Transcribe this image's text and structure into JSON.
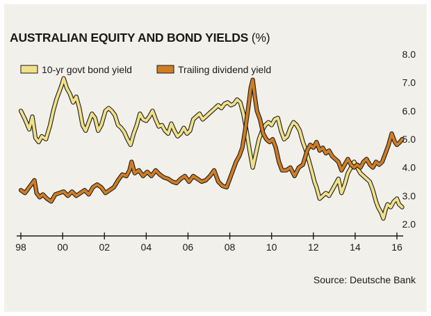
{
  "chart_data": {
    "type": "line",
    "title": "AUSTRALIAN EQUITY AND BOND YIELDS",
    "title_unit": "(%)",
    "source": "Source: Deutsche Bank",
    "xlabel": "",
    "ylabel": "",
    "xlim": [
      1997.8,
      2016.3
    ],
    "ylim": [
      2.0,
      8.0
    ],
    "x_ticks": [
      1998,
      2000,
      2002,
      2004,
      2006,
      2008,
      2010,
      2012,
      2014,
      2016
    ],
    "x_tick_labels": [
      "98",
      "00",
      "02",
      "04",
      "06",
      "08",
      "10",
      "12",
      "14",
      "16"
    ],
    "y_ticks": [
      2.0,
      3.0,
      4.0,
      5.0,
      6.0,
      7.0,
      8.0
    ],
    "y_tick_labels": [
      "2.0",
      "3.0",
      "4.0",
      "5.0",
      "6.0",
      "7.0",
      "8.0"
    ],
    "legend_position": "top-left",
    "series": [
      {
        "name": "10-yr govt bond yield",
        "color": "#f0e08a",
        "outline": "#1a1a1a",
        "points": [
          [
            1998.0,
            6.0
          ],
          [
            1998.2,
            5.7
          ],
          [
            1998.4,
            5.35
          ],
          [
            1998.55,
            5.8
          ],
          [
            1998.7,
            5.05
          ],
          [
            1998.85,
            4.9
          ],
          [
            1999.0,
            5.1
          ],
          [
            1999.2,
            5.0
          ],
          [
            1999.4,
            5.5
          ],
          [
            1999.55,
            6.0
          ],
          [
            1999.7,
            6.4
          ],
          [
            1999.8,
            6.6
          ],
          [
            1999.95,
            6.9
          ],
          [
            2000.05,
            7.15
          ],
          [
            2000.2,
            6.8
          ],
          [
            2000.35,
            6.6
          ],
          [
            2000.5,
            6.3
          ],
          [
            2000.65,
            6.5
          ],
          [
            2000.8,
            6.1
          ],
          [
            2000.95,
            5.5
          ],
          [
            2001.1,
            5.3
          ],
          [
            2001.25,
            5.6
          ],
          [
            2001.4,
            5.9
          ],
          [
            2001.55,
            5.75
          ],
          [
            2001.7,
            5.3
          ],
          [
            2001.85,
            5.5
          ],
          [
            2002.05,
            6.0
          ],
          [
            2002.2,
            6.1
          ],
          [
            2002.35,
            6.0
          ],
          [
            2002.5,
            5.85
          ],
          [
            2002.65,
            5.5
          ],
          [
            2002.8,
            5.4
          ],
          [
            2002.95,
            5.25
          ],
          [
            2003.1,
            5.0
          ],
          [
            2003.25,
            4.8
          ],
          [
            2003.4,
            5.2
          ],
          [
            2003.55,
            5.5
          ],
          [
            2003.7,
            5.9
          ],
          [
            2003.85,
            5.7
          ],
          [
            2004.0,
            5.65
          ],
          [
            2004.15,
            5.8
          ],
          [
            2004.3,
            6.0
          ],
          [
            2004.45,
            5.7
          ],
          [
            2004.6,
            5.45
          ],
          [
            2004.75,
            5.5
          ],
          [
            2004.9,
            5.3
          ],
          [
            2005.05,
            5.2
          ],
          [
            2005.2,
            5.55
          ],
          [
            2005.35,
            5.3
          ],
          [
            2005.5,
            5.1
          ],
          [
            2005.65,
            5.2
          ],
          [
            2005.8,
            5.4
          ],
          [
            2005.95,
            5.2
          ],
          [
            2006.1,
            5.3
          ],
          [
            2006.25,
            5.7
          ],
          [
            2006.4,
            5.8
          ],
          [
            2006.55,
            5.9
          ],
          [
            2006.7,
            5.7
          ],
          [
            2006.85,
            5.8
          ],
          [
            2007.0,
            5.9
          ],
          [
            2007.15,
            6.0
          ],
          [
            2007.3,
            6.1
          ],
          [
            2007.45,
            6.2
          ],
          [
            2007.6,
            6.1
          ],
          [
            2007.75,
            6.25
          ],
          [
            2007.9,
            6.3
          ],
          [
            2008.05,
            6.2
          ],
          [
            2008.2,
            6.25
          ],
          [
            2008.35,
            6.4
          ],
          [
            2008.5,
            6.3
          ],
          [
            2008.65,
            5.9
          ],
          [
            2008.8,
            5.3
          ],
          [
            2008.95,
            4.6
          ],
          [
            2009.1,
            4.0
          ],
          [
            2009.25,
            4.5
          ],
          [
            2009.4,
            5.0
          ],
          [
            2009.55,
            5.3
          ],
          [
            2009.7,
            5.5
          ],
          [
            2009.85,
            5.6
          ],
          [
            2010.0,
            5.5
          ],
          [
            2010.15,
            5.7
          ],
          [
            2010.3,
            5.75
          ],
          [
            2010.45,
            5.3
          ],
          [
            2010.6,
            5.0
          ],
          [
            2010.75,
            5.1
          ],
          [
            2010.9,
            5.4
          ],
          [
            2011.05,
            5.6
          ],
          [
            2011.2,
            5.5
          ],
          [
            2011.35,
            5.3
          ],
          [
            2011.5,
            4.9
          ],
          [
            2011.65,
            4.6
          ],
          [
            2011.8,
            4.2
          ],
          [
            2011.95,
            3.8
          ],
          [
            2012.05,
            3.5
          ],
          [
            2012.15,
            3.3
          ],
          [
            2012.3,
            2.9
          ],
          [
            2012.45,
            3.0
          ],
          [
            2012.6,
            3.1
          ],
          [
            2012.75,
            3.0
          ],
          [
            2012.9,
            3.2
          ],
          [
            2013.05,
            3.4
          ],
          [
            2013.2,
            3.6
          ],
          [
            2013.35,
            3.1
          ],
          [
            2013.5,
            3.4
          ],
          [
            2013.65,
            3.8
          ],
          [
            2013.8,
            4.0
          ],
          [
            2013.95,
            4.2
          ],
          [
            2014.1,
            4.0
          ],
          [
            2014.25,
            3.8
          ],
          [
            2014.4,
            3.7
          ],
          [
            2014.55,
            3.6
          ],
          [
            2014.7,
            3.5
          ],
          [
            2014.85,
            3.2
          ],
          [
            2015.0,
            2.8
          ],
          [
            2015.1,
            2.6
          ],
          [
            2015.25,
            2.4
          ],
          [
            2015.35,
            2.2
          ],
          [
            2015.45,
            2.5
          ],
          [
            2015.55,
            2.7
          ],
          [
            2015.7,
            2.6
          ],
          [
            2015.85,
            2.8
          ],
          [
            2016.0,
            2.9
          ],
          [
            2016.1,
            2.7
          ],
          [
            2016.25,
            2.6
          ]
        ]
      },
      {
        "name": "Trailing dividend yield",
        "color": "#d07d26",
        "outline": "#1a1a1a",
        "points": [
          [
            1998.0,
            3.2
          ],
          [
            1998.2,
            3.1
          ],
          [
            1998.35,
            3.25
          ],
          [
            1998.5,
            3.4
          ],
          [
            1998.65,
            3.55
          ],
          [
            1998.75,
            3.1
          ],
          [
            1998.9,
            2.95
          ],
          [
            1999.05,
            3.05
          ],
          [
            1999.25,
            2.9
          ],
          [
            1999.45,
            2.8
          ],
          [
            1999.65,
            3.05
          ],
          [
            1999.85,
            3.1
          ],
          [
            2000.05,
            3.15
          ],
          [
            2000.25,
            3.0
          ],
          [
            2000.45,
            3.15
          ],
          [
            2000.65,
            3.0
          ],
          [
            2000.85,
            3.1
          ],
          [
            2001.05,
            3.2
          ],
          [
            2001.25,
            3.05
          ],
          [
            2001.45,
            3.3
          ],
          [
            2001.65,
            3.4
          ],
          [
            2001.85,
            3.3
          ],
          [
            2002.05,
            3.1
          ],
          [
            2002.25,
            3.2
          ],
          [
            2002.45,
            3.3
          ],
          [
            2002.65,
            3.55
          ],
          [
            2002.85,
            3.75
          ],
          [
            2003.05,
            3.7
          ],
          [
            2003.2,
            3.9
          ],
          [
            2003.3,
            4.2
          ],
          [
            2003.45,
            3.8
          ],
          [
            2003.65,
            3.9
          ],
          [
            2003.85,
            3.7
          ],
          [
            2004.05,
            3.85
          ],
          [
            2004.25,
            3.7
          ],
          [
            2004.45,
            3.9
          ],
          [
            2004.65,
            3.75
          ],
          [
            2004.85,
            3.65
          ],
          [
            2005.05,
            3.6
          ],
          [
            2005.25,
            3.5
          ],
          [
            2005.45,
            3.45
          ],
          [
            2005.65,
            3.6
          ],
          [
            2005.85,
            3.7
          ],
          [
            2006.05,
            3.5
          ],
          [
            2006.25,
            3.7
          ],
          [
            2006.45,
            3.6
          ],
          [
            2006.65,
            3.5
          ],
          [
            2006.85,
            3.55
          ],
          [
            2007.05,
            3.7
          ],
          [
            2007.25,
            3.9
          ],
          [
            2007.45,
            3.5
          ],
          [
            2007.65,
            3.35
          ],
          [
            2007.85,
            3.3
          ],
          [
            2008.0,
            3.6
          ],
          [
            2008.15,
            3.9
          ],
          [
            2008.3,
            4.2
          ],
          [
            2008.45,
            4.4
          ],
          [
            2008.6,
            4.7
          ],
          [
            2008.75,
            5.4
          ],
          [
            2008.9,
            6.2
          ],
          [
            2009.0,
            6.8
          ],
          [
            2009.1,
            7.1
          ],
          [
            2009.2,
            6.5
          ],
          [
            2009.3,
            6.0
          ],
          [
            2009.45,
            5.7
          ],
          [
            2009.6,
            5.2
          ],
          [
            2009.75,
            5.0
          ],
          [
            2009.9,
            4.9
          ],
          [
            2010.05,
            5.0
          ],
          [
            2010.2,
            4.7
          ],
          [
            2010.35,
            4.2
          ],
          [
            2010.5,
            3.9
          ],
          [
            2010.7,
            3.9
          ],
          [
            2010.9,
            4.0
          ],
          [
            2011.1,
            3.7
          ],
          [
            2011.3,
            4.0
          ],
          [
            2011.5,
            4.1
          ],
          [
            2011.7,
            4.6
          ],
          [
            2011.85,
            4.8
          ],
          [
            2012.0,
            4.7
          ],
          [
            2012.15,
            4.9
          ],
          [
            2012.3,
            4.6
          ],
          [
            2012.45,
            4.7
          ],
          [
            2012.6,
            4.5
          ],
          [
            2012.75,
            4.6
          ],
          [
            2012.9,
            4.4
          ],
          [
            2013.05,
            4.3
          ],
          [
            2013.2,
            4.2
          ],
          [
            2013.35,
            3.9
          ],
          [
            2013.5,
            4.1
          ],
          [
            2013.65,
            4.3
          ],
          [
            2013.8,
            4.1
          ],
          [
            2013.95,
            4.0
          ],
          [
            2014.1,
            4.1
          ],
          [
            2014.25,
            4.0
          ],
          [
            2014.4,
            4.2
          ],
          [
            2014.55,
            4.3
          ],
          [
            2014.7,
            4.1
          ],
          [
            2014.85,
            4.0
          ],
          [
            2015.0,
            4.2
          ],
          [
            2015.15,
            4.1
          ],
          [
            2015.3,
            4.2
          ],
          [
            2015.45,
            4.5
          ],
          [
            2015.6,
            4.8
          ],
          [
            2015.75,
            5.2
          ],
          [
            2015.9,
            4.9
          ],
          [
            2016.0,
            4.8
          ],
          [
            2016.15,
            4.9
          ],
          [
            2016.25,
            5.0
          ]
        ]
      }
    ]
  }
}
